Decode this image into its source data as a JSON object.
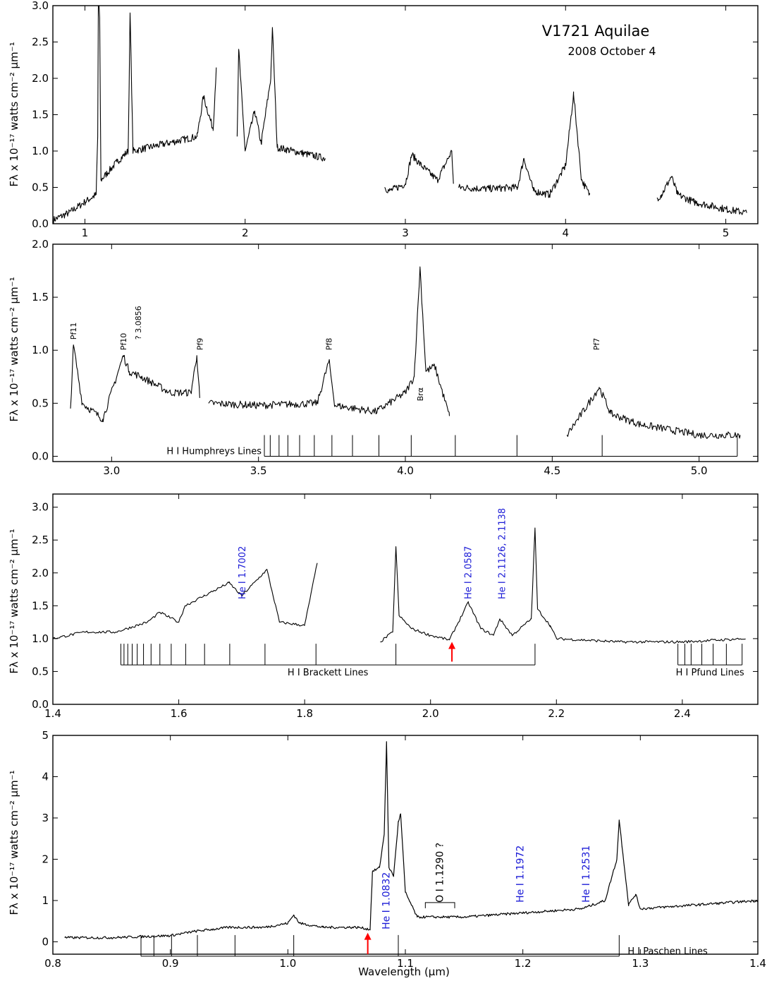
{
  "figure": {
    "title": "V1721 Aquilae",
    "subtitle": "2008 October 4",
    "ylabel": "Fλ x 10⁻¹⁷ watts cm⁻² μm⁻¹",
    "xlabel": "Wavelength (μm)",
    "line_color": "#000000",
    "label_blue": "#1a1ad6",
    "arrow_red": "#ff0000"
  },
  "chart_data": [
    {
      "type": "line",
      "panel": "full",
      "xlim": [
        0.8,
        5.2
      ],
      "ylim": [
        0,
        3.0
      ],
      "xticks": [
        1,
        2,
        3,
        4,
        5
      ],
      "yticks": [
        0.0,
        0.5,
        1.0,
        1.5,
        2.0,
        2.5,
        3.0
      ],
      "ytick_labels": [
        "0.0",
        "0.5",
        "1.0",
        "1.5",
        "2.0",
        "2.5",
        "3.0"
      ],
      "segments": [
        {
          "x": [
            0.8,
            0.9,
            1.0,
            1.07,
            1.08,
            1.085,
            1.1,
            1.2,
            1.27,
            1.282,
            1.3,
            1.4,
            1.5,
            1.6,
            1.7,
            1.74,
            1.8,
            1.82
          ],
          "y": [
            0.05,
            0.15,
            0.3,
            0.4,
            1.2,
            4.7,
            0.6,
            0.85,
            1.0,
            2.9,
            1.0,
            1.05,
            1.1,
            1.15,
            1.2,
            1.75,
            1.3,
            2.15
          ]
        },
        {
          "x": [
            1.95,
            1.96,
            2.0,
            2.06,
            2.1,
            2.16,
            2.17,
            2.2,
            2.3,
            2.4,
            2.5
          ],
          "y": [
            1.2,
            2.4,
            1.0,
            1.55,
            1.1,
            2.0,
            2.7,
            1.05,
            1.0,
            0.95,
            0.9
          ]
        },
        {
          "x": [
            2.87,
            2.9,
            3.0,
            3.04,
            3.1,
            3.2,
            3.29,
            3.3
          ],
          "y": [
            0.5,
            0.45,
            0.55,
            0.95,
            0.8,
            0.6,
            1.0,
            0.55
          ]
        },
        {
          "x": [
            3.33,
            3.5,
            3.7,
            3.74,
            3.8,
            3.9,
            4.0,
            4.05,
            4.1,
            4.15
          ],
          "y": [
            0.5,
            0.48,
            0.5,
            0.9,
            0.45,
            0.4,
            0.8,
            1.78,
            0.6,
            0.4
          ]
        },
        {
          "x": [
            4.57,
            4.6,
            4.66,
            4.7,
            4.8,
            5.0,
            5.13
          ],
          "y": [
            0.35,
            0.4,
            0.65,
            0.4,
            0.3,
            0.2,
            0.15
          ]
        }
      ]
    },
    {
      "type": "line",
      "panel": "L band",
      "xlim": [
        2.8,
        5.2
      ],
      "ylim": [
        -0.05,
        2.0
      ],
      "xticks": [
        3.0,
        3.5,
        4.0,
        4.5,
        5.0
      ],
      "xtick_labels": [
        "3.0",
        "3.5",
        "4.0",
        "4.5",
        "5.0"
      ],
      "yticks": [
        0.0,
        0.5,
        1.0,
        1.5,
        2.0
      ],
      "ytick_labels": [
        "0.0",
        "0.5",
        "1.0",
        "1.5",
        "2.0"
      ],
      "segments": [
        {
          "x": [
            2.86,
            2.87,
            2.9,
            2.97,
            3.04,
            3.06,
            3.1,
            3.2,
            3.27,
            3.29,
            3.3
          ],
          "y": [
            0.45,
            1.05,
            0.5,
            0.35,
            0.95,
            0.8,
            0.75,
            0.6,
            0.6,
            0.95,
            0.55
          ]
        },
        {
          "x": [
            3.33,
            3.5,
            3.7,
            3.74,
            3.76,
            3.9,
            4.0,
            4.03,
            4.05,
            4.07,
            4.1,
            4.15
          ],
          "y": [
            0.5,
            0.48,
            0.5,
            0.9,
            0.48,
            0.42,
            0.6,
            0.75,
            1.78,
            0.8,
            0.85,
            0.38
          ]
        },
        {
          "x": [
            4.55,
            4.6,
            4.66,
            4.7,
            4.8,
            5.0,
            5.14
          ],
          "y": [
            0.2,
            0.4,
            0.65,
            0.4,
            0.3,
            0.2,
            0.2
          ]
        }
      ],
      "annotations": [
        {
          "text": "Pf11",
          "x": 2.87,
          "y": 1.1
        },
        {
          "text": "Pf10",
          "x": 3.04,
          "y": 1.0
        },
        {
          "text": "? 3.0856",
          "x": 3.09,
          "y": 1.1
        },
        {
          "text": "Pf9",
          "x": 3.3,
          "y": 1.0
        },
        {
          "text": "Pf8",
          "x": 3.74,
          "y": 1.0
        },
        {
          "text": "Brα",
          "x": 4.05,
          "y": 0.52
        },
        {
          "text": "Pf7",
          "x": 4.65,
          "y": 1.0
        }
      ],
      "line_series": {
        "name": "H I Humphreys Lines",
        "baseline": 0.0,
        "x_end": 5.13,
        "ticks": [
          3.52,
          3.54,
          3.57,
          3.6,
          3.64,
          3.69,
          3.75,
          3.82,
          3.91,
          4.02,
          4.17,
          4.38,
          4.67
        ]
      }
    },
    {
      "type": "line",
      "panel": "H and K bands",
      "xlim": [
        1.4,
        2.52
      ],
      "ylim": [
        0.0,
        3.2
      ],
      "xticks": [
        1.4,
        1.6,
        1.8,
        2.0,
        2.2,
        2.4
      ],
      "xtick_labels": [
        "1.4",
        "1.6",
        "1.8",
        "2.0",
        "2.2",
        "2.4"
      ],
      "yticks": [
        0.0,
        0.5,
        1.0,
        1.5,
        2.0,
        2.5,
        3.0
      ],
      "ytick_labels": [
        "0.0",
        "0.5",
        "1.0",
        "1.5",
        "2.0",
        "2.5",
        "3.0"
      ],
      "segments": [
        {
          "x": [
            1.4,
            1.45,
            1.5,
            1.55,
            1.57,
            1.6,
            1.61,
            1.64,
            1.68,
            1.7,
            1.74,
            1.76,
            1.8,
            1.82
          ],
          "y": [
            1.0,
            1.1,
            1.1,
            1.25,
            1.4,
            1.25,
            1.5,
            1.65,
            1.85,
            1.65,
            2.05,
            1.25,
            1.2,
            2.15
          ]
        },
        {
          "x": [
            1.92,
            1.94,
            1.945,
            1.95,
            1.97,
            2.0,
            2.03,
            2.06,
            2.08,
            2.1,
            2.11,
            2.13,
            2.16,
            2.166,
            2.17,
            2.19,
            2.2,
            2.3,
            2.4,
            2.5
          ],
          "y": [
            0.95,
            1.1,
            2.4,
            1.35,
            1.15,
            1.05,
            0.98,
            1.55,
            1.15,
            1.05,
            1.3,
            1.05,
            1.3,
            2.68,
            1.45,
            1.2,
            1.0,
            0.95,
            0.95,
            1.0
          ]
        }
      ],
      "labels_blue": [
        {
          "text": "He I 1.7002",
          "x": 1.7
        },
        {
          "text": "He I 2.0587",
          "x": 2.059
        },
        {
          "text": "He I 2.1126, 2.1138",
          "x": 2.113
        }
      ],
      "arrow_x": 2.034,
      "line_series": [
        {
          "name": "H I Brackett Lines",
          "baseline": 0.6,
          "ticks": [
            1.508,
            1.513,
            1.519,
            1.526,
            1.534,
            1.544,
            1.556,
            1.57,
            1.588,
            1.611,
            1.641,
            1.681,
            1.737,
            1.818,
            1.945,
            2.166
          ]
        },
        {
          "name": "H I Pfund Lines",
          "baseline": 0.6,
          "ticks": [
            2.393,
            2.404,
            2.414,
            2.431,
            2.449,
            2.47,
            2.495
          ]
        }
      ]
    },
    {
      "type": "line",
      "panel": "J band",
      "xlim": [
        0.8,
        1.4
      ],
      "ylim": [
        -0.3,
        5.0
      ],
      "xticks": [
        0.8,
        0.9,
        1.0,
        1.1,
        1.2,
        1.3,
        1.4
      ],
      "xtick_labels": [
        "0.8",
        "0.9",
        "1.0",
        "1.1",
        "1.2",
        "1.3",
        "1.4"
      ],
      "yticks": [
        0,
        1,
        2,
        3,
        4,
        5
      ],
      "ytick_labels": [
        "0",
        "1",
        "2",
        "3",
        "4",
        "5"
      ],
      "x": [
        0.81,
        0.85,
        0.9,
        0.92,
        0.95,
        0.98,
        1.0,
        1.005,
        1.01,
        1.03,
        1.06,
        1.07,
        1.072,
        1.078,
        1.082,
        1.084,
        1.086,
        1.09,
        1.094,
        1.096,
        1.1,
        1.11,
        1.15,
        1.2,
        1.25,
        1.27,
        1.28,
        1.282,
        1.29,
        1.296,
        1.3,
        1.35,
        1.4
      ],
      "y": [
        0.1,
        0.1,
        0.15,
        0.25,
        0.35,
        0.35,
        0.45,
        0.65,
        0.45,
        0.35,
        0.35,
        0.3,
        1.7,
        1.8,
        2.6,
        4.85,
        1.8,
        1.6,
        2.9,
        3.1,
        1.2,
        0.6,
        0.6,
        0.7,
        0.8,
        1.0,
        2.0,
        2.95,
        0.9,
        1.15,
        0.8,
        0.9,
        1.0
      ],
      "labels_blue": [
        {
          "text": "He I 1.0832",
          "x": 1.083
        },
        {
          "text": "He I 1.1972",
          "x": 1.197
        },
        {
          "text": "He I 1.2531",
          "x": 1.253
        }
      ],
      "label_black": {
        "text": "O I 1.1290 ?",
        "x": 1.129
      },
      "bracket": [
        1.117,
        1.142
      ],
      "arrow_x": 1.068,
      "line_series": {
        "name": "H I Paschen Lines",
        "baseline": -0.35,
        "ticks": [
          0.875,
          0.886,
          0.901,
          0.923,
          0.955,
          1.005,
          1.094,
          1.282
        ]
      }
    }
  ]
}
